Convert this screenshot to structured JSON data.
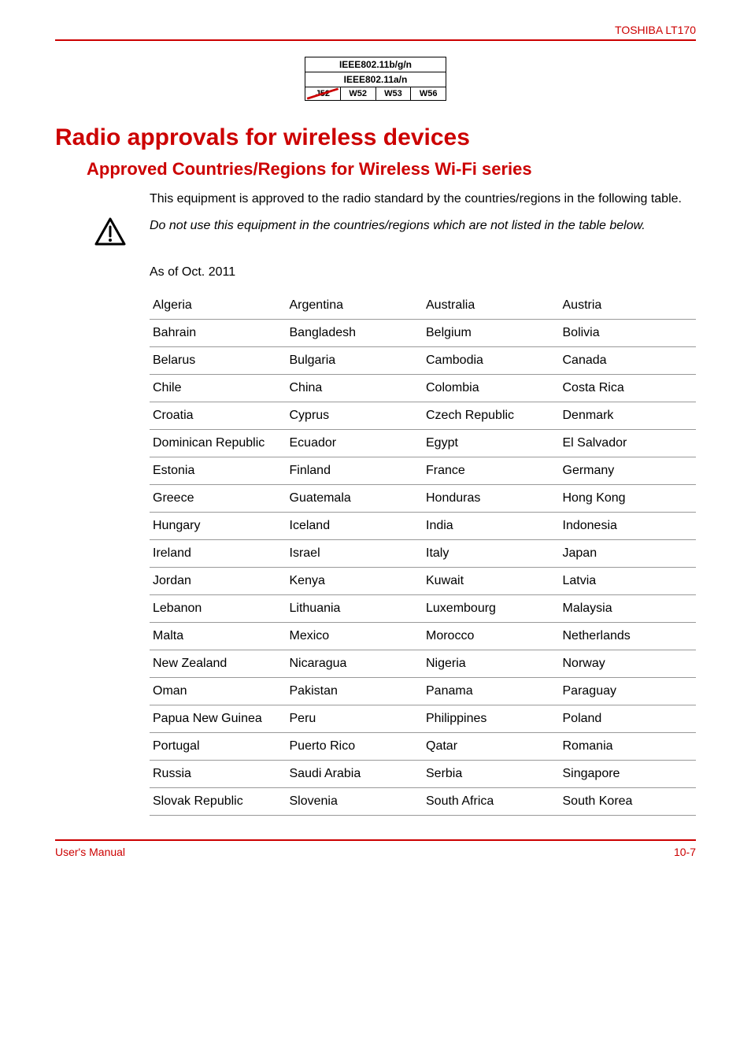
{
  "header": {
    "product": "TOSHIBA LT170"
  },
  "ieee": {
    "row1": "IEEE802.11b/g/n",
    "row2": "IEEE802.11a/n",
    "cells": [
      "J52",
      "W52",
      "W53",
      "W56"
    ]
  },
  "h1": "Radio approvals for wireless devices",
  "h2": "Approved Countries/Regions for Wireless Wi-Fi series",
  "intro": "This equipment is approved to the radio standard by the countries/regions in the following table.",
  "warning": "Do not use this equipment in the countries/regions which are not listed in the table below.",
  "asof": "As of Oct. 2011",
  "countries": [
    [
      "Algeria",
      "Argentina",
      "Australia",
      "Austria"
    ],
    [
      "Bahrain",
      "Bangladesh",
      "Belgium",
      "Bolivia"
    ],
    [
      "Belarus",
      "Bulgaria",
      "Cambodia",
      "Canada"
    ],
    [
      "Chile",
      "China",
      "Colombia",
      "Costa Rica"
    ],
    [
      "Croatia",
      "Cyprus",
      "Czech Republic",
      "Denmark"
    ],
    [
      "Dominican Republic",
      "Ecuador",
      "Egypt",
      "El Salvador"
    ],
    [
      "Estonia",
      "Finland",
      "France",
      "Germany"
    ],
    [
      "Greece",
      "Guatemala",
      "Honduras",
      "Hong Kong"
    ],
    [
      "Hungary",
      "Iceland",
      "India",
      "Indonesia"
    ],
    [
      "Ireland",
      "Israel",
      "Italy",
      "Japan"
    ],
    [
      "Jordan",
      "Kenya",
      "Kuwait",
      "Latvia"
    ],
    [
      "Lebanon",
      "Lithuania",
      "Luxembourg",
      "Malaysia"
    ],
    [
      "Malta",
      "Mexico",
      "Morocco",
      "Netherlands"
    ],
    [
      "New Zealand",
      "Nicaragua",
      "Nigeria",
      "Norway"
    ],
    [
      "Oman",
      "Pakistan",
      "Panama",
      "Paraguay"
    ],
    [
      "Papua New Guinea",
      "Peru",
      "Philippines",
      "Poland"
    ],
    [
      "Portugal",
      "Puerto Rico",
      "Qatar",
      "Romania"
    ],
    [
      "Russia",
      "Saudi Arabia",
      "Serbia",
      "Singapore"
    ],
    [
      "Slovak Republic",
      "Slovenia",
      "South Africa",
      "South Korea"
    ]
  ],
  "footer": {
    "left": "User's Manual",
    "right": "10-7"
  },
  "colors": {
    "accent": "#cc0000",
    "border_row": "#999999",
    "text": "#000000",
    "bg": "#ffffff"
  }
}
